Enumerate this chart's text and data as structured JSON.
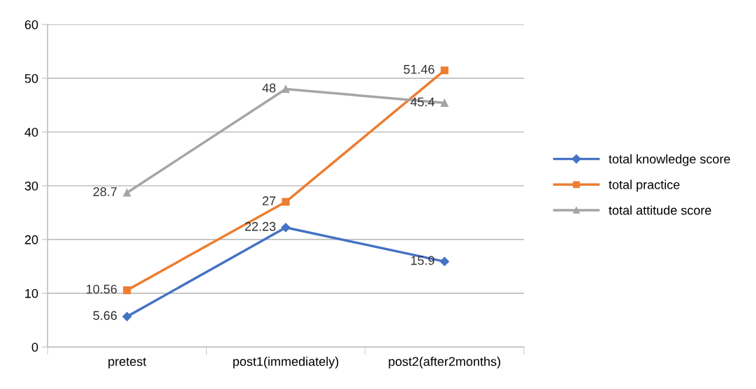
{
  "chart_data": {
    "type": "line",
    "categories": [
      "pretest",
      "post1(immediately)",
      "post2(after2months)"
    ],
    "series": [
      {
        "name": "total knowledge score",
        "color": "#4472c4",
        "marker": "diamond",
        "values": [
          5.66,
          22.23,
          15.9
        ]
      },
      {
        "name": "total practice",
        "color": "#ed7d31",
        "marker": "square",
        "values": [
          10.56,
          27,
          51.46
        ]
      },
      {
        "name": "total attitude score",
        "color": "#a5a5a5",
        "marker": "triangle",
        "values": [
          28.7,
          48,
          45.4
        ]
      }
    ],
    "ylim": [
      0,
      60
    ],
    "yticks": [
      0,
      10,
      20,
      30,
      40,
      50,
      60
    ],
    "grid": "y",
    "legend": "right",
    "data_labels": true,
    "line_style": "solid"
  }
}
